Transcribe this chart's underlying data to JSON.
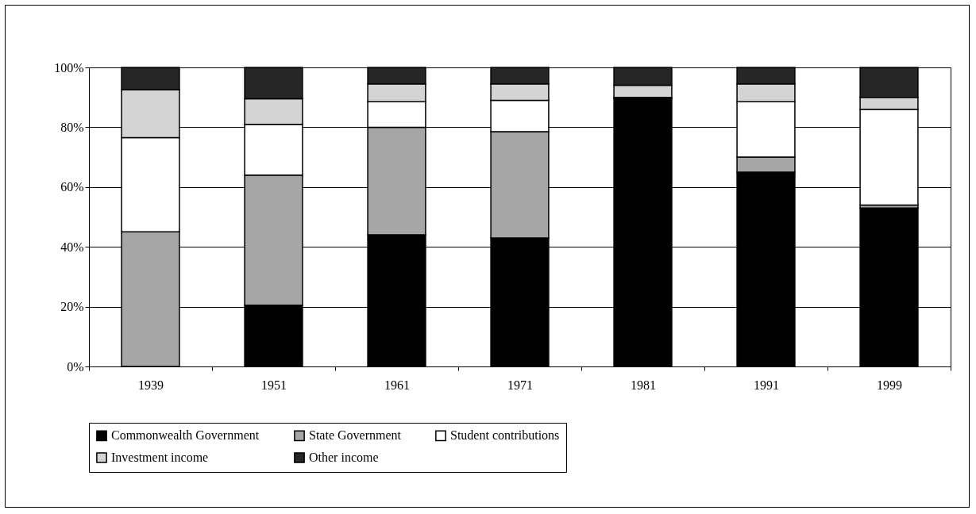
{
  "chart_data": {
    "type": "bar",
    "stacked": true,
    "categories": [
      "1939",
      "1951",
      "1961",
      "1971",
      "1981",
      "1991",
      "1999"
    ],
    "series": [
      {
        "name": "Commonwealth Government",
        "color": "#000000",
        "values": [
          0,
          20.5,
          44,
          43,
          89.5,
          65,
          53
        ]
      },
      {
        "name": "State Government",
        "color": "#a6a6a6",
        "values": [
          45,
          43.5,
          36,
          35.5,
          0.5,
          5,
          1
        ]
      },
      {
        "name": "Student contributions",
        "color": "#ffffff",
        "values": [
          31.5,
          17,
          8.5,
          10.5,
          0,
          18.5,
          32
        ]
      },
      {
        "name": "Investment income",
        "color": "#d4d4d4",
        "values": [
          16,
          8.5,
          6,
          5.5,
          4,
          6,
          4
        ]
      },
      {
        "name": "Other income",
        "color": "#262626",
        "values": [
          7.5,
          10.5,
          5.5,
          5.5,
          6,
          5.5,
          10
        ]
      }
    ],
    "ylim": [
      0,
      100
    ],
    "yticks": [
      {
        "value": 0,
        "label": "0%"
      },
      {
        "value": 20,
        "label": "20%"
      },
      {
        "value": 40,
        "label": "40%"
      },
      {
        "value": 60,
        "label": "60%"
      },
      {
        "value": 80,
        "label": "80%"
      },
      {
        "value": 100,
        "label": "100%"
      }
    ],
    "grid": "y",
    "legend": "bottom"
  }
}
